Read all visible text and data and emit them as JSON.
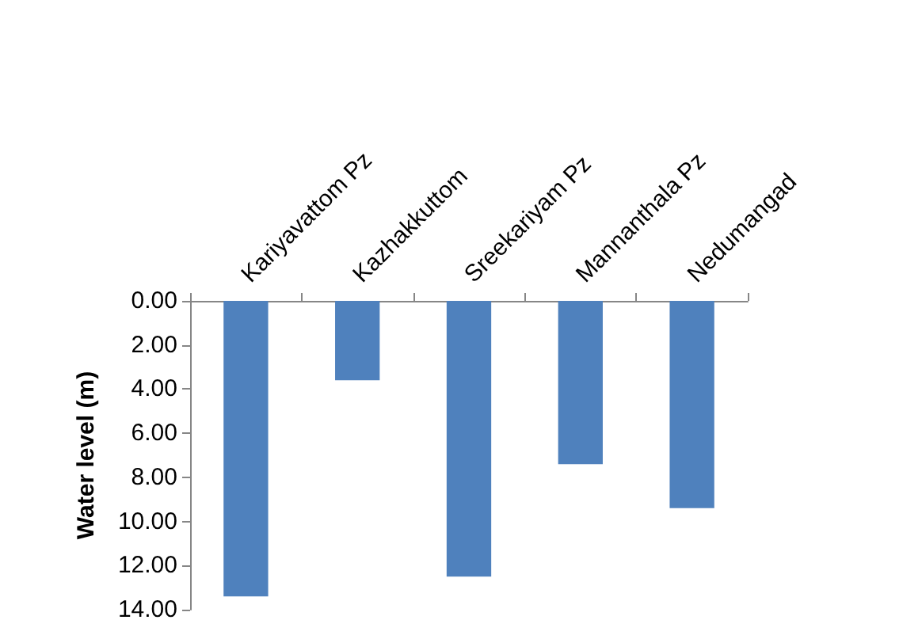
{
  "chart_data": {
    "type": "bar",
    "ylabel": "Water level (m)",
    "categories": [
      "Kariyavattom Pz",
      "Kazhakkuttom",
      "Sreekariyam Pz",
      "Mannanthala Pz",
      "Nedumangad"
    ],
    "values": [
      13.4,
      3.6,
      12.5,
      7.4,
      9.4
    ],
    "color": "#4f81bd",
    "ylim": [
      14,
      0
    ],
    "yticks": [
      {
        "value": 0,
        "label": "0.00"
      },
      {
        "value": 2,
        "label": "2.00"
      },
      {
        "value": 4,
        "label": "4.00"
      },
      {
        "value": 6,
        "label": "6.00"
      },
      {
        "value": 8,
        "label": "8.00"
      },
      {
        "value": 10,
        "label": "10.00"
      },
      {
        "value": 12,
        "label": "12.00"
      },
      {
        "value": 14,
        "label": "14.00"
      }
    ],
    "grid": false
  }
}
